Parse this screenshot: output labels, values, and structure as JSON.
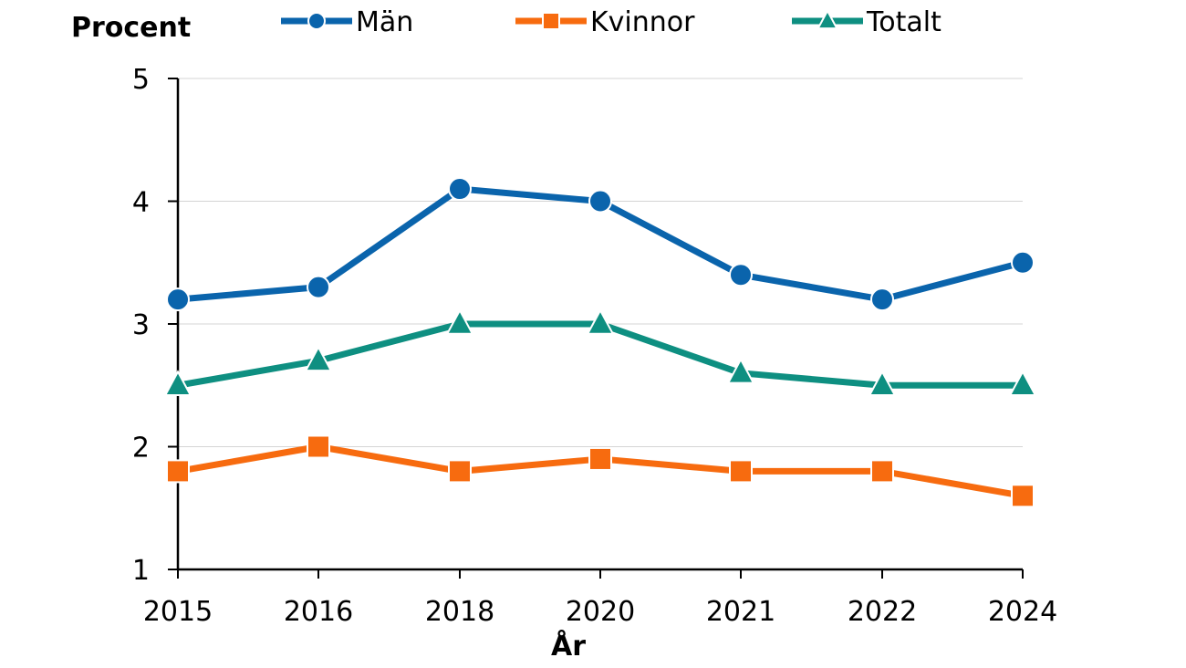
{
  "chart_data": {
    "type": "line",
    "ylabel": "Procent",
    "xlabel": "År",
    "categories": [
      "2015",
      "2016",
      "2018",
      "2020",
      "2021",
      "2022",
      "2024"
    ],
    "ylim": [
      1,
      5
    ],
    "yticks": [
      1,
      2,
      3,
      4,
      5
    ],
    "grid": true,
    "legend_position": "top",
    "series": [
      {
        "name": "Män",
        "color": "#0a64ac",
        "marker": "circle",
        "values": [
          3.2,
          3.3,
          4.1,
          4.0,
          3.4,
          3.2,
          3.5
        ]
      },
      {
        "name": "Kvinnor",
        "color": "#f76b0f",
        "marker": "square",
        "values": [
          1.8,
          2.0,
          1.8,
          1.9,
          1.8,
          1.8,
          1.6
        ]
      },
      {
        "name": "Totalt",
        "color": "#0e8f81",
        "marker": "triangle",
        "values": [
          2.5,
          2.7,
          3.0,
          3.0,
          2.6,
          2.5,
          2.5
        ]
      }
    ]
  }
}
